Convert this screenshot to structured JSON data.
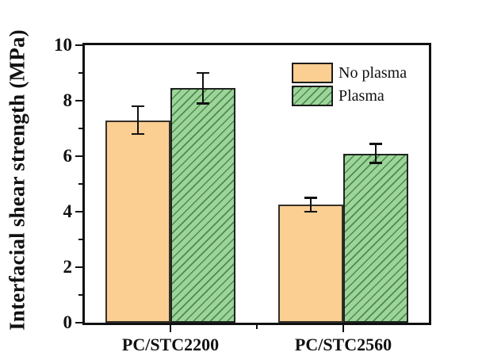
{
  "chart_data": {
    "type": "bar",
    "title": "",
    "categories": [
      "PC/STC2200",
      "PC/STC2560"
    ],
    "series": [
      {
        "name": "No plasma",
        "values": [
          7.3,
          4.25
        ],
        "errors": [
          0.5,
          0.25
        ],
        "fill": "#FBCE92",
        "edge": "#33312a",
        "hatch": "none"
      },
      {
        "name": "Plasma",
        "values": [
          8.45,
          6.1
        ],
        "errors": [
          0.55,
          0.35
        ],
        "fill": "#9CD49A",
        "edge": "#1f241f",
        "hatch": "diagonal-forward",
        "hatch_color": "#4E8A4E"
      }
    ],
    "ylabel": "Interfacial shear strength (MPa)",
    "xlabel": "",
    "ylim": [
      0,
      10
    ],
    "yticks_major": [
      0,
      2,
      4,
      6,
      8,
      10
    ],
    "yticks_minor": [
      1,
      3,
      5,
      7,
      9
    ],
    "grid": false,
    "legend_position": "inside-top-right",
    "axis_color": "#111111",
    "error_color": "#111111",
    "text_color": "#111111",
    "background": "#ffffff"
  }
}
